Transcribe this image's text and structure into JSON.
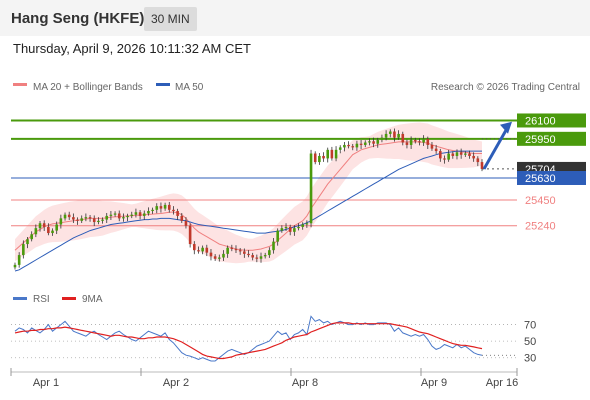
{
  "header": {
    "title": "Hang Seng (HKFE)",
    "timeframe": "30 MIN"
  },
  "datetime": "Thursday, April 9, 2026 10:11:32 AM CET",
  "legend": {
    "ma20": "MA 20 + Bollinger Bands",
    "ma50": "MA 50",
    "copyright": "Research © 2026 Trading Central"
  },
  "colors": {
    "resistance": "#4a9a0c",
    "support": "#f08080",
    "current": "#2d5db8",
    "candle_up": "#4a9a0c",
    "candle_down": "#c0392b",
    "ma20": "#f08080",
    "ma50": "#2d5db8",
    "band": "#fde3e3",
    "rsi": "#4a78c9",
    "rsi_ma": "#e02020",
    "pivot_arrow": "#2d5db8"
  },
  "chart_data": [
    {
      "type": "candlestick",
      "x_ticks": [
        "Apr 1",
        "Apr 2",
        "Apr 8",
        "Apr 9",
        "Apr 16"
      ],
      "y_range": [
        24780,
        26300
      ],
      "levels": [
        {
          "label": "26100",
          "value": 26100,
          "kind": "resistance"
        },
        {
          "label": "25950",
          "value": 25950,
          "kind": "resistance"
        },
        {
          "label": "25704",
          "value": 25704,
          "kind": "last"
        },
        {
          "label": "25630",
          "value": 25630,
          "kind": "pivot"
        },
        {
          "label": "25450",
          "value": 25450,
          "kind": "support"
        },
        {
          "label": "25240",
          "value": 25240,
          "kind": "support"
        }
      ],
      "close": [
        24920,
        25000,
        25090,
        25130,
        25170,
        25220,
        25260,
        25230,
        25180,
        25200,
        25250,
        25300,
        25330,
        25310,
        25290,
        25280,
        25300,
        25310,
        25300,
        25270,
        25280,
        25290,
        25320,
        25330,
        25340,
        25300,
        25310,
        25320,
        25330,
        25350,
        25320,
        25340,
        25360,
        25370,
        25400,
        25380,
        25410,
        25370,
        25360,
        25320,
        25280,
        25240,
        25090,
        25040,
        25030,
        25060,
        25020,
        24990,
        24970,
        24980,
        25010,
        25060,
        25050,
        25040,
        25030,
        25010,
        25000,
        24980,
        24970,
        24990,
        25000,
        25040,
        25110,
        25200,
        25220,
        25230,
        25190,
        25220,
        25230,
        25250,
        25260,
        25830,
        25760,
        25810,
        25790,
        25860,
        25790,
        25860,
        25880,
        25900,
        25890,
        25880,
        25910,
        25900,
        25920,
        25930,
        25910,
        25940,
        25960,
        25990,
        26010,
        25960,
        25990,
        25920,
        25900,
        25940,
        25930,
        25920,
        25950,
        25900,
        25870,
        25850,
        25790,
        25780,
        25830,
        25810,
        25840,
        25820,
        25830,
        25810,
        25790,
        25760,
        25704
      ],
      "ma20": [
        25040,
        25070,
        25100,
        25130,
        25160,
        25190,
        25210,
        25230,
        25245,
        25255,
        25260,
        25265,
        25270,
        25275,
        25280,
        25285,
        25290,
        25295,
        25300,
        25300,
        25300,
        25300,
        25305,
        25310,
        25312,
        25315,
        25318,
        25320,
        25322,
        25325,
        25327,
        25330,
        25332,
        25335,
        25337,
        25340,
        25345,
        25350,
        25352,
        25345,
        25330,
        25300,
        25260,
        25220,
        25190,
        25170,
        25150,
        25130,
        25110,
        25090,
        25080,
        25070,
        25060,
        25050,
        25045,
        25040,
        25040,
        25040,
        25045,
        25050,
        25060,
        25070,
        25090,
        25120,
        25150,
        25180,
        25210,
        25240,
        25260,
        25280,
        25320,
        25380,
        25430,
        25480,
        25530,
        25580,
        25620,
        25660,
        25700,
        25740,
        25780,
        25820,
        25840,
        25860,
        25870,
        25880,
        25890,
        25900,
        25905,
        25910,
        25915,
        25920,
        25925,
        25925,
        25925,
        25925,
        25925,
        25925,
        25920,
        25915,
        25900,
        25890,
        25880,
        25870,
        25860,
        25855,
        25850,
        25845,
        25840,
        25835,
        25830,
        25830,
        25830
      ],
      "ma50": [
        24870,
        24880,
        24900,
        24920,
        24940,
        24960,
        24980,
        25000,
        25020,
        25040,
        25060,
        25080,
        25100,
        25120,
        25140,
        25155,
        25170,
        25185,
        25200,
        25210,
        25220,
        25230,
        25240,
        25250,
        25255,
        25260,
        25265,
        25270,
        25275,
        25280,
        25285,
        25290,
        25290,
        25295,
        25295,
        25300,
        25300,
        25300,
        25295,
        25290,
        25285,
        25280,
        25270,
        25260,
        25250,
        25245,
        25240,
        25235,
        25230,
        25225,
        25220,
        25215,
        25210,
        25205,
        25200,
        25195,
        25190,
        25185,
        25180,
        25180,
        25180,
        25185,
        25190,
        25195,
        25200,
        25210,
        25220,
        25230,
        25240,
        25250,
        25265,
        25280,
        25300,
        25320,
        25340,
        25360,
        25380,
        25400,
        25420,
        25440,
        25460,
        25480,
        25500,
        25520,
        25540,
        25560,
        25580,
        25600,
        25620,
        25640,
        25660,
        25680,
        25700,
        25715,
        25730,
        25745,
        25760,
        25775,
        25790,
        25800,
        25810,
        25820,
        25830,
        25835,
        25840,
        25845,
        25850,
        25850,
        25850,
        25850,
        25850,
        25850,
        25850
      ]
    },
    {
      "type": "line",
      "legend": [
        "RSI",
        "9MA"
      ],
      "y_ticks": [
        70,
        50,
        30
      ],
      "y_range": [
        20,
        90
      ],
      "rsi": [
        62,
        66,
        64,
        60,
        66,
        63,
        60,
        64,
        70,
        62,
        66,
        70,
        74,
        68,
        62,
        60,
        58,
        56,
        60,
        62,
        58,
        55,
        52,
        56,
        60,
        62,
        58,
        55,
        52,
        50,
        54,
        58,
        62,
        60,
        58,
        56,
        60,
        52,
        48,
        42,
        36,
        33,
        32,
        30,
        28,
        30,
        28,
        26,
        26,
        30,
        34,
        38,
        40,
        38,
        36,
        34,
        36,
        40,
        44,
        46,
        48,
        50,
        56,
        62,
        58,
        60,
        52,
        58,
        60,
        64,
        58,
        80,
        74,
        76,
        72,
        74,
        70,
        72,
        74,
        72,
        70,
        70,
        72,
        70,
        72,
        70,
        70,
        72,
        72,
        72,
        70,
        62,
        66,
        60,
        58,
        56,
        58,
        56,
        58,
        52,
        44,
        40,
        42,
        46,
        44,
        42,
        46,
        42,
        44,
        40,
        36,
        34,
        33
      ],
      "ma9": [
        60,
        61,
        62,
        62,
        63,
        63,
        64,
        64,
        65,
        65,
        66,
        66,
        67,
        66,
        65,
        64,
        63,
        62,
        61,
        60,
        59,
        58,
        57,
        56,
        57,
        57,
        56,
        55,
        55,
        54,
        53,
        53,
        54,
        54,
        55,
        55,
        55,
        54,
        53,
        51,
        49,
        46,
        43,
        40,
        37,
        34,
        32,
        31,
        30,
        29,
        29,
        30,
        31,
        33,
        34,
        35,
        36,
        37,
        38,
        39,
        40,
        42,
        44,
        46,
        48,
        51,
        53,
        55,
        56,
        57,
        58,
        61,
        63,
        65,
        67,
        69,
        71,
        72,
        72,
        72,
        72,
        71,
        71,
        71,
        71,
        71,
        71,
        71,
        71,
        71,
        71,
        70,
        69,
        68,
        67,
        65,
        63,
        61,
        60,
        59,
        57,
        55,
        53,
        51,
        49,
        47,
        46,
        45,
        45,
        44,
        43,
        42,
        41
      ]
    }
  ]
}
